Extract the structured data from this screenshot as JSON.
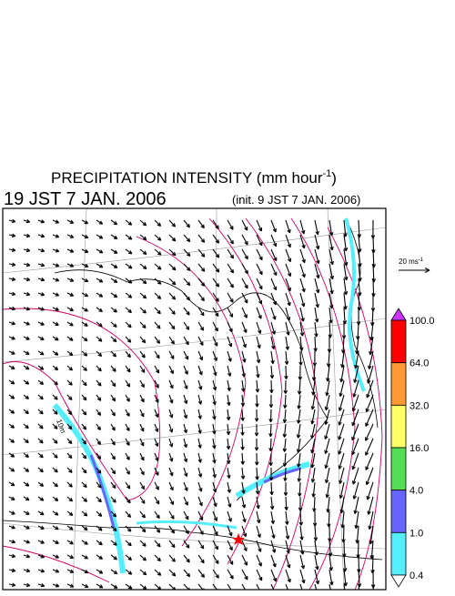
{
  "header": {
    "title": "PRECIPITATION INTENSITY (mm hour",
    "title_exponent": "-1",
    "title_close": ")",
    "valid_time": "19 JST 7 JAN. 2006",
    "init_time": "(init. 9 JST 7 JAN. 2006)"
  },
  "reference_vector": {
    "label": "20 ms",
    "exponent": "-1"
  },
  "map": {
    "contour_label": "10m"
  },
  "colorbar": {
    "labels": [
      "100.0",
      "64.0",
      "32.0",
      "16.0",
      "4.0",
      "1.0",
      "0.4"
    ],
    "colors": [
      "#ff0000",
      "#ff9933",
      "#ffff66",
      "#55dd55",
      "#6666ff",
      "#55eeff"
    ],
    "over_color": "#cc33ff",
    "under_color": "#ffffff"
  }
}
